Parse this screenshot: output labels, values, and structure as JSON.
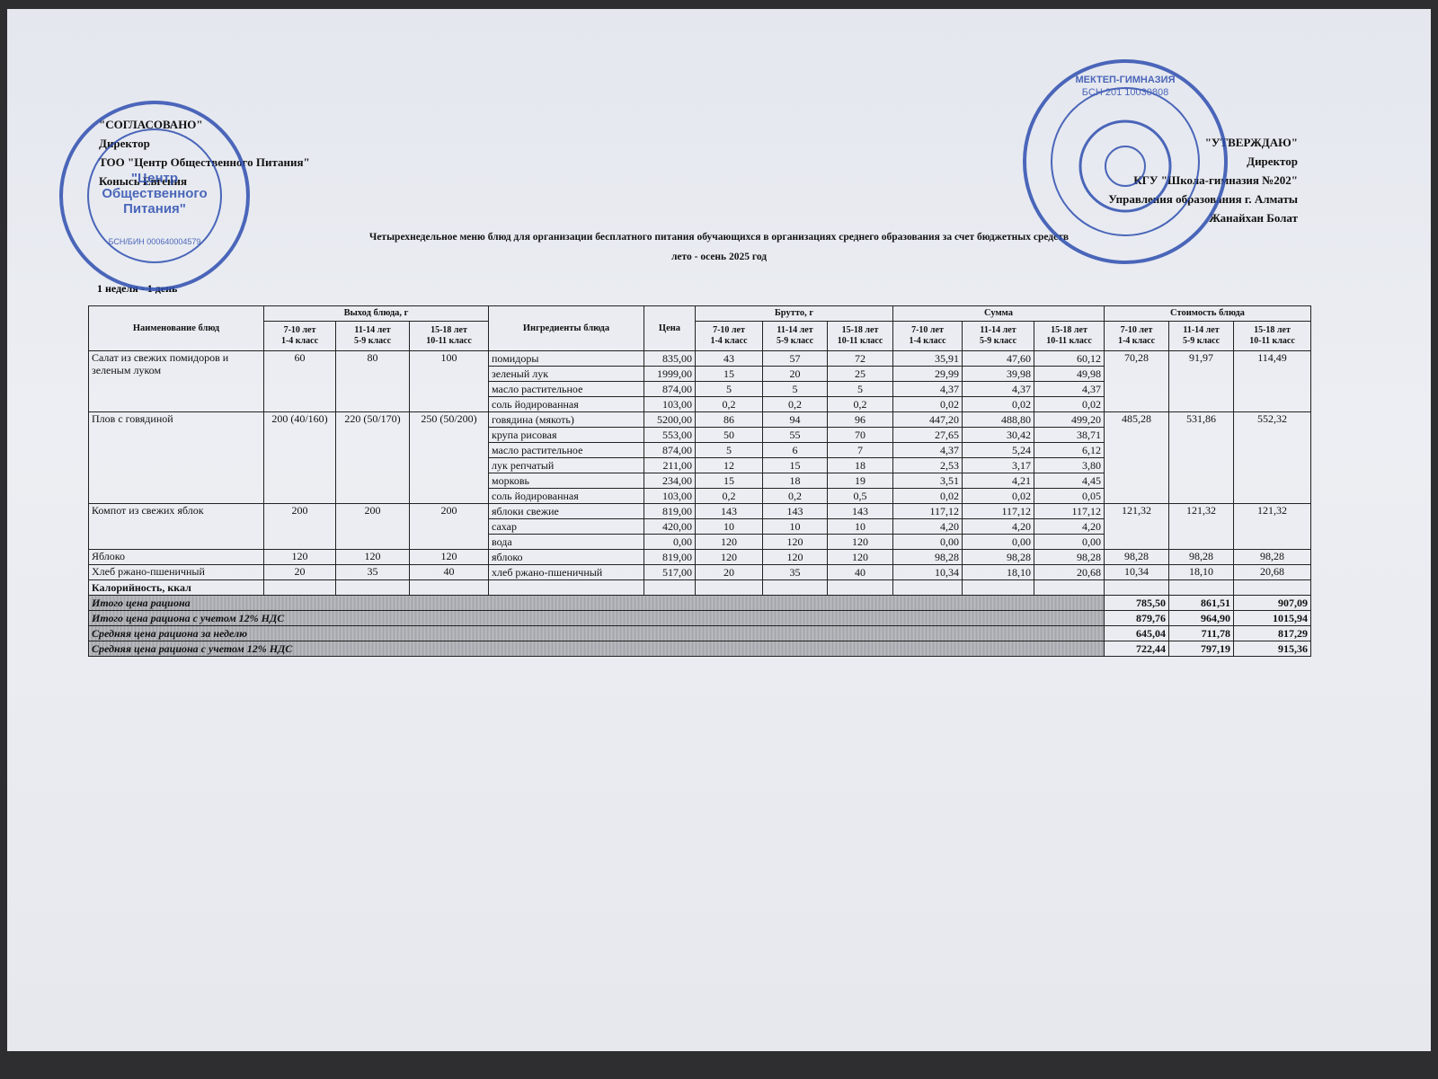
{
  "approval_left": {
    "title": "\"СОГЛАСОВАНО\"",
    "position": "Директор",
    "org": "ТОО \"Центр Общественного Питания\"",
    "name": "Конысь Евгения"
  },
  "approval_right": {
    "title": "\"УТВЕРЖДАЮ\"",
    "position": "Директор",
    "org": "КГУ \"Школа-гимназия №202\"",
    "dept": "Управления образования г. Алматы",
    "name": "Жанайхан Болат"
  },
  "stamps": {
    "left": "\"Центр Общественного Питания\"",
    "left_bin": "БСН/БИН 000640004579",
    "right_top": "МЕКТЕП-ГИМНАЗИЯ",
    "right_bin": "БСН 201 10030808"
  },
  "title": "Четырехнедельное меню блюд для организации бесплатного питания обучающихся в организациях среднего образования за счет бюджетных средств",
  "subtitle": "лето - осень 2025 год",
  "day": "1 неделя - 1 день",
  "table": {
    "headers": {
      "dish": "Наименование блюд",
      "yield": "Выход блюда, г",
      "ingredients": "Ингредиенты блюда",
      "price": "Цена",
      "brutto": "Брутто, г",
      "sum": "Сумма",
      "cost": "Стоимость блюда"
    },
    "age_groups": [
      {
        "age": "7-10 лет",
        "grade": "1-4 класс"
      },
      {
        "age": "11-14 лет",
        "grade": "5-9 класс"
      },
      {
        "age": "15-18 лет",
        "grade": "10-11 класс"
      }
    ],
    "dishes": [
      {
        "name": "Салат из свежих помидоров и зеленым луком",
        "yield": [
          "60",
          "80",
          "100"
        ],
        "cost": [
          "70,28",
          "91,97",
          "114,49"
        ],
        "ingredients": [
          {
            "name": "помидоры",
            "price": "835,00",
            "brutto": [
              "43",
              "57",
              "72"
            ],
            "sum": [
              "35,91",
              "47,60",
              "60,12"
            ]
          },
          {
            "name": "зеленый лук",
            "price": "1999,00",
            "brutto": [
              "15",
              "20",
              "25"
            ],
            "sum": [
              "29,99",
              "39,98",
              "49,98"
            ]
          },
          {
            "name": "масло растительное",
            "price": "874,00",
            "brutto": [
              "5",
              "5",
              "5"
            ],
            "sum": [
              "4,37",
              "4,37",
              "4,37"
            ]
          },
          {
            "name": "соль йодированная",
            "price": "103,00",
            "brutto": [
              "0,2",
              "0,2",
              "0,2"
            ],
            "sum": [
              "0,02",
              "0,02",
              "0,02"
            ]
          }
        ]
      },
      {
        "name": "Плов с говядиной",
        "yield": [
          "200 (40/160)",
          "220 (50/170)",
          "250 (50/200)"
        ],
        "cost": [
          "485,28",
          "531,86",
          "552,32"
        ],
        "ingredients": [
          {
            "name": "говядина (мякоть)",
            "price": "5200,00",
            "brutto": [
              "86",
              "94",
              "96"
            ],
            "sum": [
              "447,20",
              "488,80",
              "499,20"
            ]
          },
          {
            "name": "крупа рисовая",
            "price": "553,00",
            "brutto": [
              "50",
              "55",
              "70"
            ],
            "sum": [
              "27,65",
              "30,42",
              "38,71"
            ]
          },
          {
            "name": "масло растительное",
            "price": "874,00",
            "brutto": [
              "5",
              "6",
              "7"
            ],
            "sum": [
              "4,37",
              "5,24",
              "6,12"
            ]
          },
          {
            "name": "лук репчатый",
            "price": "211,00",
            "brutto": [
              "12",
              "15",
              "18"
            ],
            "sum": [
              "2,53",
              "3,17",
              "3,80"
            ]
          },
          {
            "name": "морковь",
            "price": "234,00",
            "brutto": [
              "15",
              "18",
              "19"
            ],
            "sum": [
              "3,51",
              "4,21",
              "4,45"
            ]
          },
          {
            "name": "соль йодированная",
            "price": "103,00",
            "brutto": [
              "0,2",
              "0,2",
              "0,5"
            ],
            "sum": [
              "0,02",
              "0,02",
              "0,05"
            ]
          }
        ]
      },
      {
        "name": "Компот из свежих яблок",
        "yield": [
          "200",
          "200",
          "200"
        ],
        "cost": [
          "121,32",
          "121,32",
          "121,32"
        ],
        "ingredients": [
          {
            "name": "яблоки свежие",
            "price": "819,00",
            "brutto": [
              "143",
              "143",
              "143"
            ],
            "sum": [
              "117,12",
              "117,12",
              "117,12"
            ]
          },
          {
            "name": "сахар",
            "price": "420,00",
            "brutto": [
              "10",
              "10",
              "10"
            ],
            "sum": [
              "4,20",
              "4,20",
              "4,20"
            ]
          },
          {
            "name": "вода",
            "price": "0,00",
            "brutto": [
              "120",
              "120",
              "120"
            ],
            "sum": [
              "0,00",
              "0,00",
              "0,00"
            ]
          }
        ]
      },
      {
        "name": "Яблоко",
        "yield": [
          "120",
          "120",
          "120"
        ],
        "cost": [
          "98,28",
          "98,28",
          "98,28"
        ],
        "ingredients": [
          {
            "name": "яблоко",
            "price": "819,00",
            "brutto": [
              "120",
              "120",
              "120"
            ],
            "sum": [
              "98,28",
              "98,28",
              "98,28"
            ]
          }
        ]
      },
      {
        "name": "Хлеб ржано-пшеничный",
        "yield": [
          "20",
          "35",
          "40"
        ],
        "cost": [
          "10,34",
          "18,10",
          "20,68"
        ],
        "ingredients": [
          {
            "name": "хлеб ржано-пшеничный",
            "price": "517,00",
            "brutto": [
              "20",
              "35",
              "40"
            ],
            "sum": [
              "10,34",
              "18,10",
              "20,68"
            ]
          }
        ]
      }
    ],
    "calories": "Калорийность, ккал",
    "totals": [
      {
        "label": "Итого цена рациона",
        "values": [
          "785,50",
          "861,51",
          "907,09"
        ]
      },
      {
        "label": "Итого цена рациона с учетом 12% НДС",
        "values": [
          "879,76",
          "964,90",
          "1015,94"
        ]
      },
      {
        "label": "Средняя цена рациона за неделю",
        "values": [
          "645,04",
          "711,78",
          "817,29"
        ]
      },
      {
        "label": "Средняя цена рациона с учетом 12% НДС",
        "values": [
          "722,44",
          "797,19",
          "915,36"
        ]
      }
    ]
  }
}
